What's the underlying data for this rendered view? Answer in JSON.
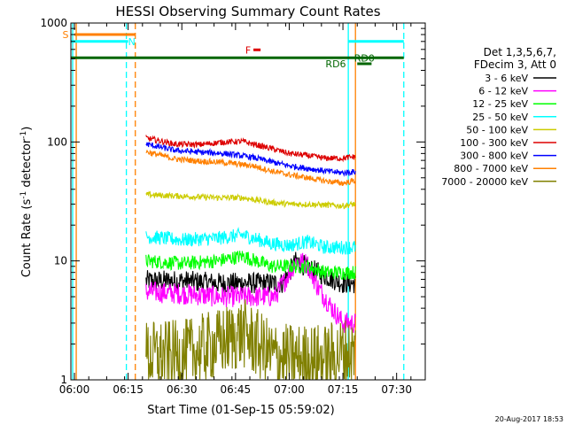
{
  "chart_data": {
    "type": "line",
    "title": "HESSI Observing Summary Count Rates",
    "xlabel": "Start Time (01-Sep-15 05:59:02)",
    "ylabel": "Count Rate (s⁻¹ detector⁻¹)",
    "ylabel_parts": [
      "Count Rate (s",
      "-1",
      " detector",
      "-1",
      ")"
    ],
    "y_scale": "log",
    "ylim": [
      1,
      1000
    ],
    "xlim_minutes": [
      -1,
      98
    ],
    "x_ticks": [
      {
        "t": 0,
        "label": "06:00"
      },
      {
        "t": 15,
        "label": "06:15"
      },
      {
        "t": 30,
        "label": "06:30"
      },
      {
        "t": 45,
        "label": "06:45"
      },
      {
        "t": 60,
        "label": "07:00"
      },
      {
        "t": 75,
        "label": "07:15"
      },
      {
        "t": 90,
        "label": "07:30"
      }
    ],
    "y_ticks": [
      {
        "v": 1,
        "label": "1"
      },
      {
        "v": 10,
        "label": "10"
      },
      {
        "v": 100,
        "label": "100"
      },
      {
        "v": 1000,
        "label": "1000"
      }
    ],
    "legend_position": "right",
    "legend_header": [
      "Det 1,3,5,6,7,",
      "FDecim 3, Att 0"
    ],
    "data_window_minutes": [
      20,
      78.5
    ],
    "series": [
      {
        "name": "3 - 6 keV",
        "color": "#000000",
        "points": [
          [
            20,
            6.8
          ],
          [
            30,
            6.8
          ],
          [
            40,
            6.5
          ],
          [
            50,
            6.5
          ],
          [
            58,
            6.5
          ],
          [
            62,
            10
          ],
          [
            66,
            8.5
          ],
          [
            70,
            7.5
          ],
          [
            75,
            6.5
          ],
          [
            78,
            6.5
          ]
        ]
      },
      {
        "name": "6 - 12 keV",
        "color": "#ff00ff",
        "points": [
          [
            20,
            5.5
          ],
          [
            30,
            5.3
          ],
          [
            40,
            5
          ],
          [
            50,
            5
          ],
          [
            56,
            5
          ],
          [
            59,
            7
          ],
          [
            62,
            10
          ],
          [
            65,
            9.5
          ],
          [
            68,
            6
          ],
          [
            72,
            4
          ],
          [
            75,
            3
          ],
          [
            78,
            3
          ]
        ]
      },
      {
        "name": "12 - 25 keV",
        "color": "#00ff00",
        "points": [
          [
            20,
            10
          ],
          [
            30,
            9.5
          ],
          [
            40,
            10
          ],
          [
            47,
            11
          ],
          [
            55,
            9
          ],
          [
            60,
            9
          ],
          [
            65,
            9
          ],
          [
            70,
            8
          ],
          [
            75,
            8
          ],
          [
            78,
            8
          ]
        ]
      },
      {
        "name": "25 - 50 keV",
        "color": "#00ffff",
        "points": [
          [
            20,
            16
          ],
          [
            30,
            15
          ],
          [
            40,
            15.5
          ],
          [
            47,
            16.5
          ],
          [
            55,
            14
          ],
          [
            60,
            13.5
          ],
          [
            65,
            14.5
          ],
          [
            70,
            13
          ],
          [
            75,
            13
          ],
          [
            78,
            13
          ]
        ]
      },
      {
        "name": "50 - 100 keV",
        "color": "#cccc00",
        "points": [
          [
            20,
            36
          ],
          [
            30,
            35
          ],
          [
            40,
            34
          ],
          [
            47,
            34
          ],
          [
            55,
            31
          ],
          [
            60,
            30
          ],
          [
            65,
            30
          ],
          [
            70,
            29.5
          ],
          [
            75,
            29
          ],
          [
            78,
            30
          ]
        ]
      },
      {
        "name": "100 - 300 keV",
        "color": "#dd0000",
        "points": [
          [
            20,
            108
          ],
          [
            28,
            96
          ],
          [
            35,
            95
          ],
          [
            42,
            100
          ],
          [
            47,
            101
          ],
          [
            55,
            88
          ],
          [
            60,
            80
          ],
          [
            65,
            77
          ],
          [
            70,
            73
          ],
          [
            75,
            73
          ],
          [
            78,
            75
          ]
        ]
      },
      {
        "name": "300 - 800 keV",
        "color": "#0000ff",
        "points": [
          [
            20,
            96
          ],
          [
            28,
            85
          ],
          [
            35,
            82
          ],
          [
            42,
            80
          ],
          [
            50,
            74
          ],
          [
            55,
            68
          ],
          [
            60,
            63
          ],
          [
            65,
            60
          ],
          [
            70,
            57
          ],
          [
            75,
            55
          ],
          [
            78,
            56
          ]
        ]
      },
      {
        "name": "800 - 7000 keV",
        "color": "#ff8000",
        "points": [
          [
            20,
            83
          ],
          [
            28,
            72
          ],
          [
            35,
            69
          ],
          [
            42,
            67
          ],
          [
            50,
            63
          ],
          [
            55,
            57
          ],
          [
            60,
            53
          ],
          [
            65,
            50
          ],
          [
            70,
            47
          ],
          [
            75,
            45
          ],
          [
            78,
            47
          ]
        ]
      },
      {
        "name": "7000 - 20000 keV",
        "color": "#808000",
        "points": [
          [
            20,
            1.6
          ],
          [
            30,
            1.6
          ],
          [
            40,
            2
          ],
          [
            47,
            2.5
          ],
          [
            55,
            1.6
          ],
          [
            60,
            1.5
          ],
          [
            65,
            1.5
          ],
          [
            70,
            1.5
          ],
          [
            75,
            1.7
          ],
          [
            78,
            1.7
          ]
        ]
      }
    ],
    "flags": [
      {
        "label": "S",
        "color": "#ff8000",
        "t_start": 0,
        "t_end": 17,
        "y": 800,
        "label_t": -2.5
      },
      {
        "label": "N",
        "color": "#00ffff",
        "t_start": -1,
        "t_end": 15,
        "y": 700,
        "label_t": 16
      },
      {
        "label": "",
        "color": "#00ffff",
        "t_start": 76.5,
        "t_end": 92,
        "y": 700,
        "label_t": null
      },
      {
        "label": "F",
        "color": "#dd0000",
        "t_start": 50,
        "t_end": 52,
        "y": 595,
        "label_t": 48.5
      },
      {
        "label": "RD0",
        "color": "#006600",
        "t_start": -1,
        "t_end": 92,
        "y": 510,
        "label_t": 81
      },
      {
        "label": "RD6",
        "color": "#006600",
        "t_start": 79,
        "t_end": 83,
        "y": 455,
        "label_t": 73
      }
    ],
    "vertical_markers": [
      {
        "t": -0.5,
        "color": "#00ffff",
        "style": "solid"
      },
      {
        "t": 0.5,
        "color": "#ff8000",
        "style": "solid"
      },
      {
        "t": 14.5,
        "color": "#00ffff",
        "style": "dashed"
      },
      {
        "t": 17,
        "color": "#ff8000",
        "style": "dashed"
      },
      {
        "t": 76.5,
        "color": "#00ffff",
        "style": "solid"
      },
      {
        "t": 78.5,
        "color": "#ff8000",
        "style": "solid"
      },
      {
        "t": 92,
        "color": "#00ffff",
        "style": "dashed"
      }
    ]
  },
  "footer": {
    "timestamp": "20-Aug-2017 18:53"
  }
}
